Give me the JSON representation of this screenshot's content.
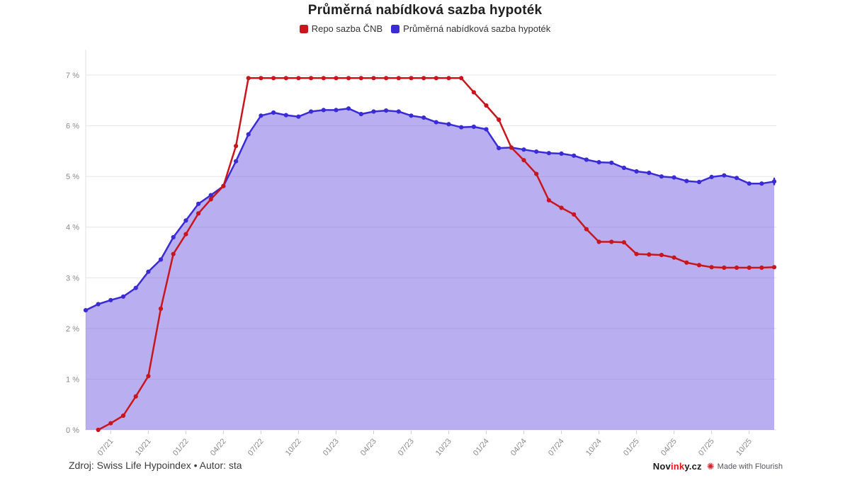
{
  "page": {
    "title": "Průměrná nabídková sazba hypoték"
  },
  "footer": {
    "source_text": "Zdroj: Swiss Life Hypoindex • Autor: sta"
  },
  "credits": {
    "novinky": {
      "black_prefix": "Nov",
      "red_mid": "ink",
      "black_suffix": "y.cz",
      "red_color": "#e8101c"
    },
    "flourish_text": "Made with Flourish",
    "flourish_icon": "flourish-starburst-icon",
    "flourish_icon_color": "#d6212e",
    "flourish_icon_glyph": "✺"
  },
  "chart_data": {
    "type": "line",
    "title": "Průměrná nabídková sazba hypoték",
    "xlabel": "",
    "ylabel": "",
    "ylim": [
      0,
      7
    ],
    "grid": true,
    "legend_position": "top-center",
    "axis_color": "#e0e0e0",
    "grid_color": "#e5e5e5",
    "tick_label_color": "#8a8a8a",
    "categories": [
      "05/21",
      "06/21",
      "07/21",
      "08/21",
      "09/21",
      "10/21",
      "11/21",
      "12/21",
      "01/22",
      "02/22",
      "03/22",
      "04/22",
      "05/22",
      "06/22",
      "07/22",
      "08/22",
      "09/22",
      "10/22",
      "11/22",
      "12/22",
      "01/23",
      "02/23",
      "03/23",
      "04/23",
      "05/23",
      "06/23",
      "07/23",
      "08/23",
      "09/23",
      "10/23",
      "11/23",
      "12/23",
      "01/24",
      "02/24",
      "03/24",
      "04/24",
      "05/24",
      "06/24",
      "07/24",
      "08/24",
      "09/24",
      "10/24",
      "11/24",
      "12/24",
      "01/25",
      "02/25",
      "03/25",
      "04/25",
      "05/25",
      "06/25",
      "07/25",
      "08/25",
      "09/25",
      "10/25",
      "11/25",
      "12/25"
    ],
    "x_ticks": [
      {
        "index": 2,
        "label": "07/21"
      },
      {
        "index": 5,
        "label": "10/21"
      },
      {
        "index": 8,
        "label": "01/22"
      },
      {
        "index": 11,
        "label": "04/22"
      },
      {
        "index": 14,
        "label": "07/22"
      },
      {
        "index": 17,
        "label": "10/22"
      },
      {
        "index": 20,
        "label": "01/23"
      },
      {
        "index": 23,
        "label": "04/23"
      },
      {
        "index": 26,
        "label": "07/23"
      },
      {
        "index": 29,
        "label": "10/23"
      },
      {
        "index": 32,
        "label": "01/24"
      },
      {
        "index": 35,
        "label": "04/24"
      },
      {
        "index": 38,
        "label": "07/24"
      },
      {
        "index": 41,
        "label": "10/24"
      },
      {
        "index": 44,
        "label": "01/25"
      },
      {
        "index": 47,
        "label": "04/25"
      },
      {
        "index": 50,
        "label": "07/25"
      },
      {
        "index": 53,
        "label": "10/25"
      }
    ],
    "y_ticks": [
      {
        "value": 0,
        "label": "0 %"
      },
      {
        "value": 1,
        "label": "1 %"
      },
      {
        "value": 2,
        "label": "2 %"
      },
      {
        "value": 3,
        "label": "3 %"
      },
      {
        "value": 4,
        "label": "4 %"
      },
      {
        "value": 5,
        "label": "5 %"
      },
      {
        "value": 6,
        "label": "6 %"
      },
      {
        "value": 7,
        "label": "7 %"
      }
    ],
    "series": [
      {
        "name": "Repo sazba ČNB",
        "color": "#c8161c",
        "style": "line",
        "values": [
          null,
          0.0,
          0.13,
          0.28,
          0.66,
          1.06,
          2.39,
          3.47,
          3.86,
          4.27,
          4.55,
          4.81,
          5.6,
          6.94,
          6.94,
          6.94,
          6.94,
          6.94,
          6.94,
          6.94,
          6.94,
          6.94,
          6.94,
          6.94,
          6.94,
          6.94,
          6.94,
          6.94,
          6.94,
          6.94,
          6.94,
          6.66,
          6.4,
          6.12,
          5.57,
          5.32,
          5.05,
          4.53,
          4.38,
          4.25,
          3.96,
          3.71,
          3.71,
          3.7,
          3.47,
          3.46,
          3.45,
          3.4,
          3.3,
          3.25,
          3.21,
          3.2,
          3.2,
          3.2,
          3.2,
          3.21
        ]
      },
      {
        "name": "Průměrná nabídková sazba hypoték",
        "color": "#3a2bd6",
        "style": "area+line",
        "area_fill": "rgba(118,100,226,0.52)",
        "values": [
          2.36,
          2.48,
          2.56,
          2.63,
          2.8,
          3.12,
          3.36,
          3.8,
          4.13,
          4.46,
          4.63,
          4.81,
          5.3,
          5.83,
          6.2,
          6.26,
          6.21,
          6.18,
          6.28,
          6.31,
          6.31,
          6.34,
          6.23,
          6.28,
          6.3,
          6.28,
          6.2,
          6.16,
          6.07,
          6.03,
          5.97,
          5.98,
          5.93,
          5.56,
          5.57,
          5.53,
          5.49,
          5.46,
          5.45,
          5.41,
          5.33,
          5.28,
          5.27,
          5.17,
          5.1,
          5.07,
          5.0,
          4.98,
          4.91,
          4.89,
          4.99,
          5.02,
          4.97,
          4.86,
          4.86,
          4.9
        ]
      }
    ]
  }
}
